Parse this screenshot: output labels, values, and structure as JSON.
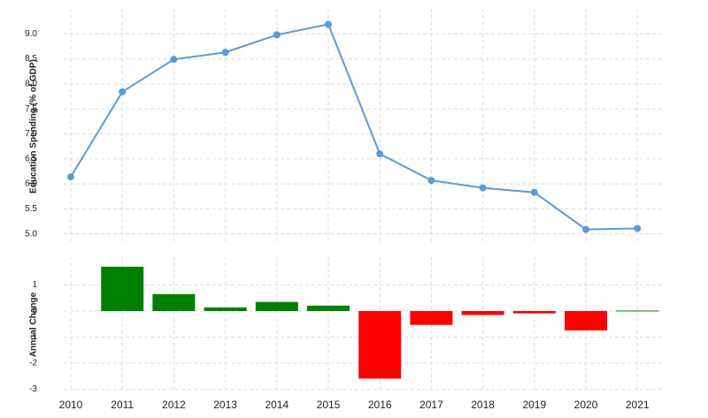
{
  "chart_data": [
    {
      "type": "line",
      "ylabel": "Education Spending (% of GDP)",
      "values": [
        6.14,
        7.84,
        8.49,
        8.63,
        8.98,
        9.19,
        6.6,
        6.07,
        5.92,
        5.83,
        5.09,
        5.11
      ],
      "color": "#5b9bd5",
      "ylim": [
        4.8,
        9.5
      ],
      "yticks": [
        {
          "value": 5,
          "label": "5.0"
        },
        {
          "value": 5.5,
          "label": "5.5"
        },
        {
          "value": 6,
          "label": "6.0"
        },
        {
          "value": 6.5,
          "label": "6.5"
        },
        {
          "value": 7,
          "label": "7.0"
        },
        {
          "value": 7.5,
          "label": "7.5"
        },
        {
          "value": 8,
          "label": "8.0"
        },
        {
          "value": 8.5,
          "label": "8.5"
        },
        {
          "value": 9,
          "label": "9.0"
        }
      ],
      "grid": true
    },
    {
      "type": "bar",
      "ylabel": "Annual Change",
      "categories": [
        "2010",
        "2011",
        "2012",
        "2013",
        "2014",
        "2015",
        "2016",
        "2017",
        "2018",
        "2019",
        "2020",
        "2021"
      ],
      "values": [
        null,
        1.7,
        0.65,
        0.14,
        0.35,
        0.21,
        -2.59,
        -0.53,
        -0.15,
        -0.09,
        -0.74,
        0.02
      ],
      "color": "#008000",
      "negative_color": "#ff0000",
      "ylim": [
        -3.15,
        2.1
      ],
      "yticks": [
        -3,
        -2,
        -1,
        0,
        1
      ],
      "grid": true
    }
  ]
}
